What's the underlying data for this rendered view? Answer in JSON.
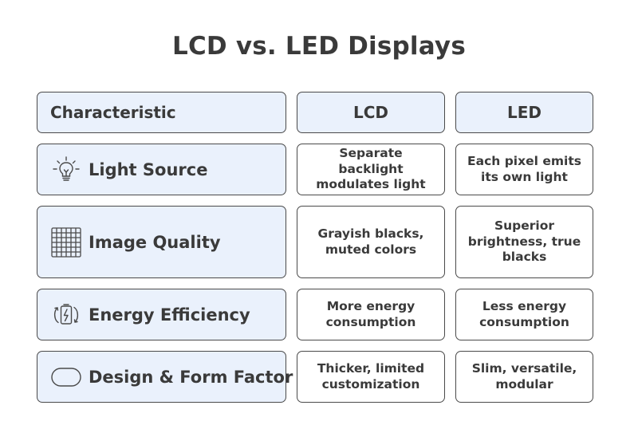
{
  "title": "LCD vs. LED Displays",
  "header": {
    "characteristic": "Characteristic",
    "lcd": "LCD",
    "led": "LED"
  },
  "rows": [
    {
      "label": "Light Source",
      "icon": "lightbulb-icon",
      "lcd": "Separate backlight modulates light",
      "led": "Each pixel emits its own light"
    },
    {
      "label": "Image Quality",
      "icon": "pixel-grid-icon",
      "lcd": "Grayish blacks, muted colors",
      "led": "Superior brightness, true blacks"
    },
    {
      "label": "Energy Efficiency",
      "icon": "battery-cycle-icon",
      "lcd": "More energy consumption",
      "led": "Less energy consumption"
    },
    {
      "label": "Design & Form Factor",
      "icon": "rounded-rectangle-icon",
      "lcd": "Thicker, limited customization",
      "led": "Slim, versatile, modular"
    }
  ],
  "colors": {
    "header_fill": "#eaf1fc",
    "border": "#4a4a4a",
    "text": "#3a3a3a"
  }
}
